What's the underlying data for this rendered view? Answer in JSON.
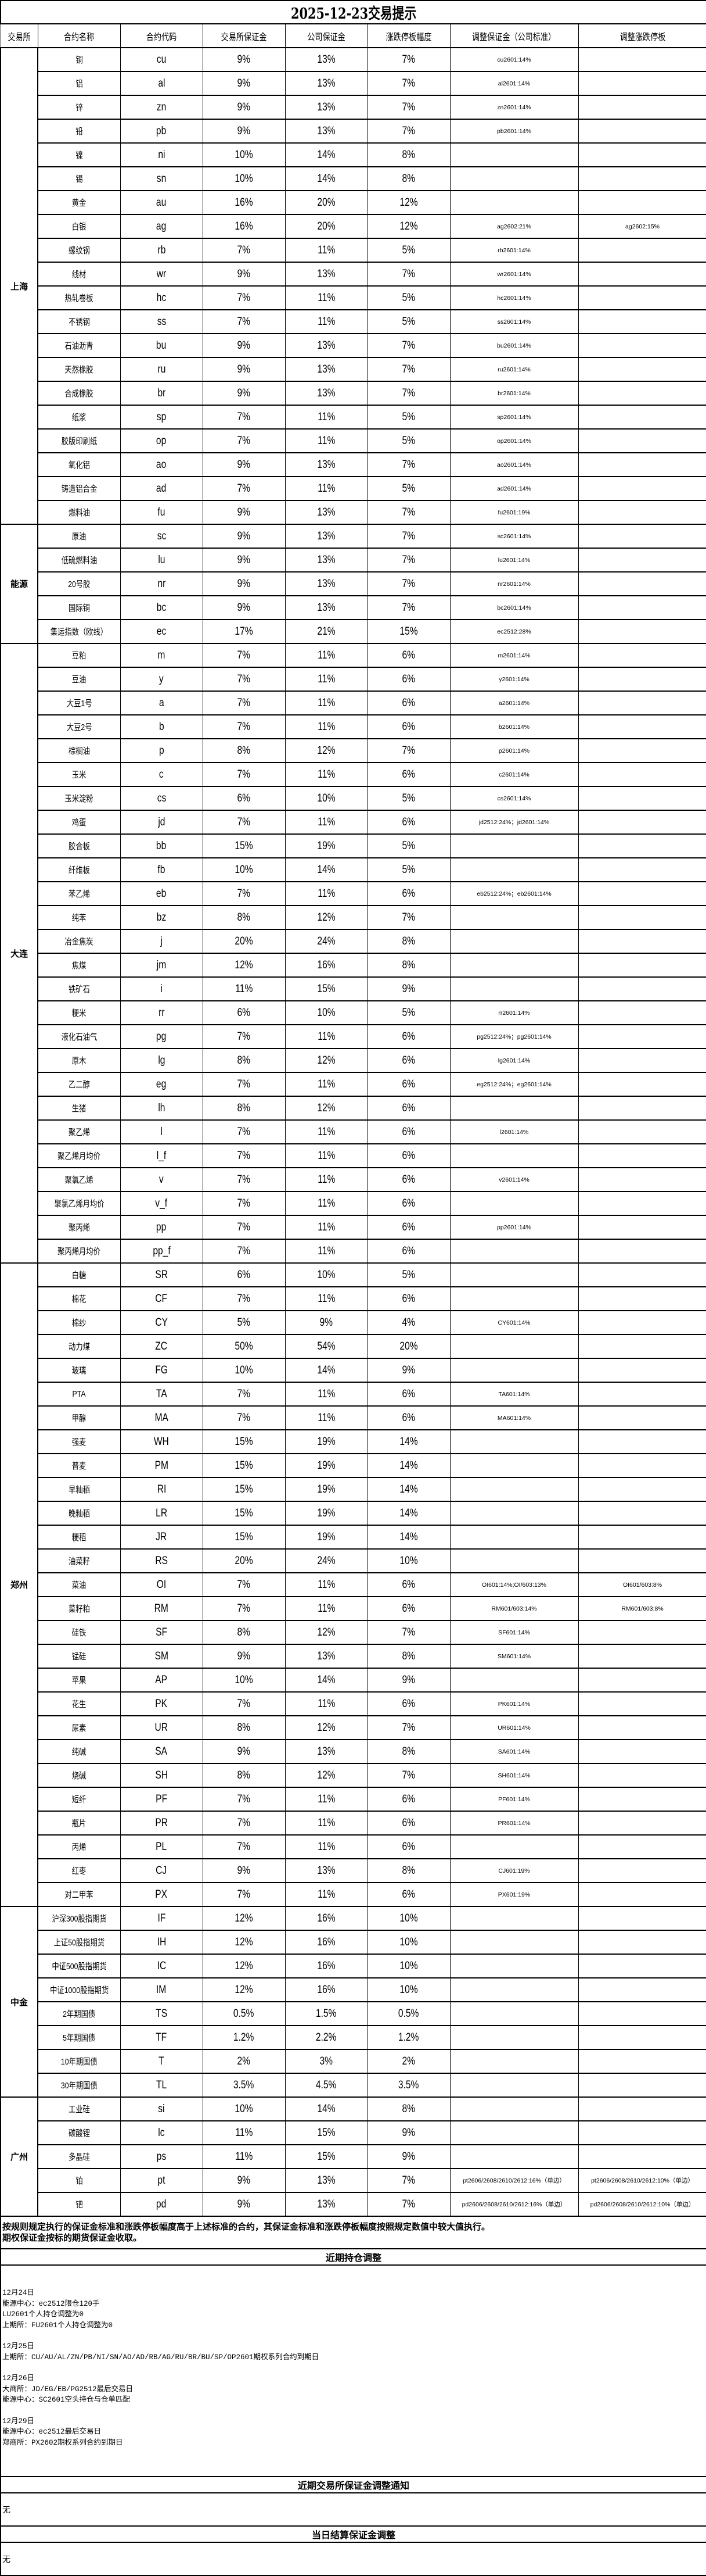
{
  "title": "2025-12-23交易提示",
  "headers": [
    "交易所",
    "合约名称",
    "合约代码",
    "交易所保证金",
    "公司保证金",
    "涨跌停板幅度",
    "调整保证金（公司标准）",
    "调整涨跌停板"
  ],
  "exchanges": [
    {
      "name": "上海",
      "rows": [
        [
          "铜",
          "cu",
          "9%",
          "13%",
          "7%",
          "cu2601:14%",
          ""
        ],
        [
          "铝",
          "al",
          "9%",
          "13%",
          "7%",
          "al2601:14%",
          ""
        ],
        [
          "锌",
          "zn",
          "9%",
          "13%",
          "7%",
          "zn2601:14%",
          ""
        ],
        [
          "铅",
          "pb",
          "9%",
          "13%",
          "7%",
          "pb2601:14%",
          ""
        ],
        [
          "镍",
          "ni",
          "10%",
          "14%",
          "8%",
          "",
          ""
        ],
        [
          "锡",
          "sn",
          "10%",
          "14%",
          "8%",
          "",
          ""
        ],
        [
          "黄金",
          "au",
          "16%",
          "20%",
          "12%",
          "",
          ""
        ],
        [
          "白银",
          "ag",
          "16%",
          "20%",
          "12%",
          "ag2602:21%",
          "ag2602:15%"
        ],
        [
          "螺纹钢",
          "rb",
          "7%",
          "11%",
          "5%",
          "rb2601:14%",
          ""
        ],
        [
          "线材",
          "wr",
          "9%",
          "13%",
          "7%",
          "wr2601:14%",
          ""
        ],
        [
          "热轧卷板",
          "hc",
          "7%",
          "11%",
          "5%",
          "hc2601:14%",
          ""
        ],
        [
          "不锈钢",
          "ss",
          "7%",
          "11%",
          "5%",
          "ss2601:14%",
          ""
        ],
        [
          "石油沥青",
          "bu",
          "9%",
          "13%",
          "7%",
          "bu2601:14%",
          ""
        ],
        [
          "天然橡胶",
          "ru",
          "9%",
          "13%",
          "7%",
          "ru2601:14%",
          ""
        ],
        [
          "合成橡胶",
          "br",
          "9%",
          "13%",
          "7%",
          "br2601:14%",
          ""
        ],
        [
          "纸浆",
          "sp",
          "7%",
          "11%",
          "5%",
          "sp2601:14%",
          ""
        ],
        [
          "胶版印刷纸",
          "op",
          "7%",
          "11%",
          "5%",
          "op2601:14%",
          ""
        ],
        [
          "氧化铝",
          "ao",
          "9%",
          "13%",
          "7%",
          "ao2601:14%",
          ""
        ],
        [
          "铸造铝合金",
          "ad",
          "7%",
          "11%",
          "5%",
          "ad2601:14%",
          ""
        ],
        [
          "燃料油",
          "fu",
          "9%",
          "13%",
          "7%",
          "fu2601:19%",
          ""
        ]
      ]
    },
    {
      "name": "能源",
      "rows": [
        [
          "原油",
          "sc",
          "9%",
          "13%",
          "7%",
          "sc2601:14%",
          ""
        ],
        [
          "低硫燃料油",
          "lu",
          "9%",
          "13%",
          "7%",
          "lu2601:14%",
          ""
        ],
        [
          "20号胶",
          "nr",
          "9%",
          "13%",
          "7%",
          "nr2601:14%",
          ""
        ],
        [
          "国际铜",
          "bc",
          "9%",
          "13%",
          "7%",
          "bc2601:14%",
          ""
        ],
        [
          "集运指数（欧线）",
          "ec",
          "17%",
          "21%",
          "15%",
          "ec2512:28%",
          ""
        ]
      ]
    },
    {
      "name": "大连",
      "rows": [
        [
          "豆粕",
          "m",
          "7%",
          "11%",
          "6%",
          "m2601:14%",
          ""
        ],
        [
          "豆油",
          "y",
          "7%",
          "11%",
          "6%",
          "y2601:14%",
          ""
        ],
        [
          "大豆1号",
          "a",
          "7%",
          "11%",
          "6%",
          "a2601:14%",
          ""
        ],
        [
          "大豆2号",
          "b",
          "7%",
          "11%",
          "6%",
          "b2601:14%",
          ""
        ],
        [
          "棕榈油",
          "p",
          "8%",
          "12%",
          "7%",
          "p2601:14%",
          ""
        ],
        [
          "玉米",
          "c",
          "7%",
          "11%",
          "6%",
          "c2601:14%",
          ""
        ],
        [
          "玉米淀粉",
          "cs",
          "6%",
          "10%",
          "5%",
          "cs2601:14%",
          ""
        ],
        [
          "鸡蛋",
          "jd",
          "7%",
          "11%",
          "6%",
          "jd2512:24%；jd2601:14%",
          ""
        ],
        [
          "胶合板",
          "bb",
          "15%",
          "19%",
          "5%",
          "",
          ""
        ],
        [
          "纤维板",
          "fb",
          "10%",
          "14%",
          "5%",
          "",
          ""
        ],
        [
          "苯乙烯",
          "eb",
          "7%",
          "11%",
          "6%",
          "eb2512:24%；eb2601:14%",
          ""
        ],
        [
          "纯苯",
          "bz",
          "8%",
          "12%",
          "7%",
          "",
          ""
        ],
        [
          "冶金焦炭",
          "j",
          "20%",
          "24%",
          "8%",
          "",
          ""
        ],
        [
          "焦煤",
          "jm",
          "12%",
          "16%",
          "8%",
          "",
          ""
        ],
        [
          "铁矿石",
          "i",
          "11%",
          "15%",
          "9%",
          "",
          ""
        ],
        [
          "粳米",
          "rr",
          "6%",
          "10%",
          "5%",
          "rr2601:14%",
          ""
        ],
        [
          "液化石油气",
          "pg",
          "7%",
          "11%",
          "6%",
          "pg2512:24%；pg2601:14%",
          ""
        ],
        [
          "原木",
          "lg",
          "8%",
          "12%",
          "6%",
          "lg2601:14%",
          ""
        ],
        [
          "乙二醇",
          "eg",
          "7%",
          "11%",
          "6%",
          "eg2512:24%；eg2601:14%",
          ""
        ],
        [
          "生猪",
          "lh",
          "8%",
          "12%",
          "6%",
          "",
          ""
        ],
        [
          "聚乙烯",
          "l",
          "7%",
          "11%",
          "6%",
          "l2601:14%",
          ""
        ],
        [
          "聚乙烯月均价",
          "l_f",
          "7%",
          "11%",
          "6%",
          "",
          ""
        ],
        [
          "聚氯乙烯",
          "v",
          "7%",
          "11%",
          "6%",
          "v2601:14%",
          ""
        ],
        [
          "聚氯乙烯月均价",
          "v_f",
          "7%",
          "11%",
          "6%",
          "",
          ""
        ],
        [
          "聚丙烯",
          "pp",
          "7%",
          "11%",
          "6%",
          "pp2601:14%",
          ""
        ],
        [
          "聚丙烯月均价",
          "pp_f",
          "7%",
          "11%",
          "6%",
          "",
          ""
        ]
      ]
    },
    {
      "name": "郑州",
      "rows": [
        [
          "白糖",
          "SR",
          "6%",
          "10%",
          "5%",
          "",
          ""
        ],
        [
          "棉花",
          "CF",
          "7%",
          "11%",
          "6%",
          "",
          ""
        ],
        [
          "棉纱",
          "CY",
          "5%",
          "9%",
          "4%",
          "CY601:14%",
          ""
        ],
        [
          "动力煤",
          "ZC",
          "50%",
          "54%",
          "20%",
          "",
          ""
        ],
        [
          "玻璃",
          "FG",
          "10%",
          "14%",
          "9%",
          "",
          ""
        ],
        [
          "PTA",
          "TA",
          "7%",
          "11%",
          "6%",
          "TA601:14%",
          ""
        ],
        [
          "甲醇",
          "MA",
          "7%",
          "11%",
          "6%",
          "MA601:14%",
          ""
        ],
        [
          "强麦",
          "WH",
          "15%",
          "19%",
          "14%",
          "",
          ""
        ],
        [
          "普麦",
          "PM",
          "15%",
          "19%",
          "14%",
          "",
          ""
        ],
        [
          "早籼稻",
          "RI",
          "15%",
          "19%",
          "14%",
          "",
          ""
        ],
        [
          "晚籼稻",
          "LR",
          "15%",
          "19%",
          "14%",
          "",
          ""
        ],
        [
          "粳稻",
          "JR",
          "15%",
          "19%",
          "14%",
          "",
          ""
        ],
        [
          "油菜籽",
          "RS",
          "20%",
          "24%",
          "10%",
          "",
          ""
        ],
        [
          "菜油",
          "OI",
          "7%",
          "11%",
          "6%",
          "OI601:14%;OI/603:13%",
          "OI601/603:8%"
        ],
        [
          "菜籽粕",
          "RM",
          "7%",
          "11%",
          "6%",
          "RM601/603:14%",
          "RM601/603:8%"
        ],
        [
          "硅铁",
          "SF",
          "8%",
          "12%",
          "7%",
          "SF601:14%",
          ""
        ],
        [
          "锰硅",
          "SM",
          "9%",
          "13%",
          "8%",
          "SM601:14%",
          ""
        ],
        [
          "苹果",
          "AP",
          "10%",
          "14%",
          "9%",
          "",
          ""
        ],
        [
          "花生",
          "PK",
          "7%",
          "11%",
          "6%",
          "PK601:14%",
          ""
        ],
        [
          "尿素",
          "UR",
          "8%",
          "12%",
          "7%",
          "UR601:14%",
          ""
        ],
        [
          "纯碱",
          "SA",
          "9%",
          "13%",
          "8%",
          "SA601:14%",
          ""
        ],
        [
          "烧碱",
          "SH",
          "8%",
          "12%",
          "7%",
          "SH601:14%",
          ""
        ],
        [
          "短纤",
          "PF",
          "7%",
          "11%",
          "6%",
          "PF601:14%",
          ""
        ],
        [
          "瓶片",
          "PR",
          "7%",
          "11%",
          "6%",
          "PR601:14%",
          ""
        ],
        [
          "丙烯",
          "PL",
          "7%",
          "11%",
          "6%",
          "",
          ""
        ],
        [
          "红枣",
          "CJ",
          "9%",
          "13%",
          "8%",
          "CJ601:19%",
          ""
        ],
        [
          "对二甲苯",
          "PX",
          "7%",
          "11%",
          "6%",
          "PX601:19%",
          ""
        ]
      ]
    },
    {
      "name": "中金",
      "rows": [
        [
          "沪深300股指期货",
          "IF",
          "12%",
          "16%",
          "10%",
          "",
          ""
        ],
        [
          "上证50股指期货",
          "IH",
          "12%",
          "16%",
          "10%",
          "",
          ""
        ],
        [
          "中证500股指期货",
          "IC",
          "12%",
          "16%",
          "10%",
          "",
          ""
        ],
        [
          "中证1000股指期货",
          "IM",
          "12%",
          "16%",
          "10%",
          "",
          ""
        ],
        [
          "2年期国债",
          "TS",
          "0.5%",
          "1.5%",
          "0.5%",
          "",
          ""
        ],
        [
          "5年期国债",
          "TF",
          "1.2%",
          "2.2%",
          "1.2%",
          "",
          ""
        ],
        [
          "10年期国债",
          "T",
          "2%",
          "3%",
          "2%",
          "",
          ""
        ],
        [
          "30年期国债",
          "TL",
          "3.5%",
          "4.5%",
          "3.5%",
          "",
          ""
        ]
      ]
    },
    {
      "name": "广州",
      "rows": [
        [
          "工业硅",
          "si",
          "10%",
          "14%",
          "8%",
          "",
          ""
        ],
        [
          "碳酸锂",
          "lc",
          "11%",
          "15%",
          "9%",
          "",
          ""
        ],
        [
          "多晶硅",
          "ps",
          "11%",
          "15%",
          "9%",
          "",
          ""
        ],
        [
          "铂",
          "pt",
          "9%",
          "13%",
          "7%",
          "pt2606/2608/2610/2612:16%（单边）",
          "pt2606/2608/2610/2612:10%（单边）"
        ],
        [
          "钯",
          "pd",
          "9%",
          "13%",
          "7%",
          "pd2606/2608/2610/2612:16%（单边）",
          "pd2606/2608/2610/2612:10%（单边）"
        ]
      ]
    }
  ],
  "notes": [
    "按规则规定执行的保证金标准和涨跌停板幅度高于上述标准的合约，其保证金标准和涨跌停板幅度按照规定数值中较大值执行。",
    "期权保证金按标的期货保证金收取。"
  ],
  "position_adjust": {
    "title": "近期持仓调整",
    "groups": [
      [
        "12月24日",
        "能源中心：ec2512限仓120手",
        "LU2601个人持仓调整为0",
        "上期所：FU2601个人持仓调整为0"
      ],
      [
        "12月25日",
        "上期所：CU/AU/AL/ZN/PB/NI/SN/AO/AD/RB/AG/RU/BR/BU/SP/OP2601期权系列合约到期日"
      ],
      [
        "12月26日",
        "大商所：JD/EG/EB/PG2512最后交易日",
        "能源中心：SC2601空头持仓与仓单匹配"
      ],
      [
        "12月29日",
        "能源中心：ec2512最后交易日",
        "郑商所：PX2602期权系列合约到期日"
      ]
    ]
  },
  "exchange_margin_notice": {
    "title": "近期交易所保证金调整通知",
    "content": "无"
  },
  "settlement_margin": {
    "title": "当日结算保证金调整",
    "content": "无"
  }
}
